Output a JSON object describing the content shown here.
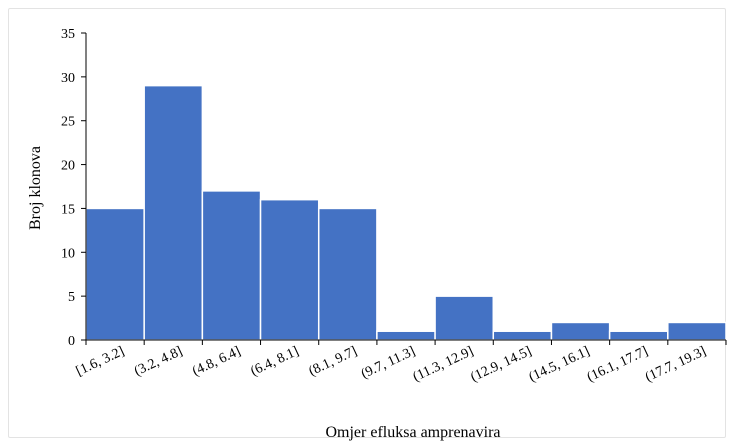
{
  "chart_data": {
    "type": "bar",
    "xlabel": "Omjer efluksa amprenavira",
    "ylabel": "Broj klonova",
    "ylim": [
      0,
      35
    ],
    "yticks": [
      0,
      5,
      10,
      15,
      20,
      25,
      30,
      35
    ],
    "grid": false,
    "categories": [
      "[1.6, 3.2]",
      "(3.2, 4.8]",
      "(4.8, 6.4]",
      "(6.4, 8.1]",
      "(8.1, 9.7]",
      "(9.7, 11.3]",
      "(11.3, 12.9]",
      "(12.9, 14.5]",
      "(14.5, 16.1]",
      "(16.1, 17.7]",
      "(17.7, 19.3]"
    ],
    "values": [
      15,
      29,
      17,
      16,
      15,
      1,
      5,
      1,
      2,
      1,
      2
    ],
    "bar_color": "#4472c4"
  }
}
